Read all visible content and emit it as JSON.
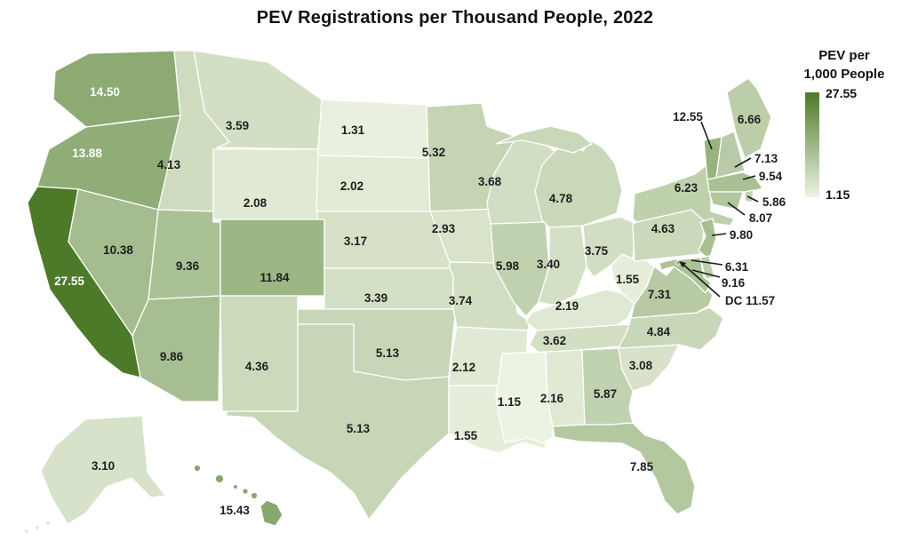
{
  "title": "PEV Registrations per Thousand People, 2022",
  "legend": {
    "title_line1": "PEV per",
    "title_line2": "1,000 People",
    "max_label": "27.55",
    "min_label": "1.15"
  },
  "chart_data": {
    "type": "choropleth",
    "title": "PEV Registrations per Thousand People, 2022",
    "unit": "PEV registrations per 1,000 people",
    "year": 2022,
    "legend_title": "PEV per 1,000 People",
    "color_scale": {
      "min_value": 1.15,
      "max_value": 27.55,
      "min_color": "#edf3e3",
      "max_color": "#4d7a28",
      "gamma": 0.75
    },
    "states": [
      {
        "abbr": "WA",
        "value": 14.5,
        "display": "14.50"
      },
      {
        "abbr": "OR",
        "value": 13.88,
        "display": "13.88"
      },
      {
        "abbr": "CA",
        "value": 27.55,
        "display": "27.55"
      },
      {
        "abbr": "ID",
        "value": 4.13,
        "display": "4.13"
      },
      {
        "abbr": "NV",
        "value": 10.38,
        "display": "10.38"
      },
      {
        "abbr": "UT",
        "value": 9.36,
        "display": "9.36"
      },
      {
        "abbr": "AZ",
        "value": 9.86,
        "display": "9.86"
      },
      {
        "abbr": "MT",
        "value": 3.59,
        "display": "3.59"
      },
      {
        "abbr": "WY",
        "value": 2.08,
        "display": "2.08"
      },
      {
        "abbr": "CO",
        "value": 11.84,
        "display": "11.84"
      },
      {
        "abbr": "NM",
        "value": 4.36,
        "display": "4.36"
      },
      {
        "abbr": "ND",
        "value": 1.31,
        "display": "1.31"
      },
      {
        "abbr": "SD",
        "value": 2.02,
        "display": "2.02"
      },
      {
        "abbr": "NE",
        "value": 3.17,
        "display": "3.17"
      },
      {
        "abbr": "KS",
        "value": 3.39,
        "display": "3.39"
      },
      {
        "abbr": "OK",
        "value": 5.13,
        "display": "5.13"
      },
      {
        "abbr": "TX",
        "value": 5.13,
        "display": "5.13"
      },
      {
        "abbr": "MN",
        "value": 5.32,
        "display": "5.32"
      },
      {
        "abbr": "IA",
        "value": 2.93,
        "display": "2.93"
      },
      {
        "abbr": "MO",
        "value": 3.74,
        "display": "3.74"
      },
      {
        "abbr": "AR",
        "value": 2.12,
        "display": "2.12"
      },
      {
        "abbr": "LA",
        "value": 1.55,
        "display": "1.55"
      },
      {
        "abbr": "WI",
        "value": 3.68,
        "display": "3.68"
      },
      {
        "abbr": "IL",
        "value": 5.98,
        "display": "5.98"
      },
      {
        "abbr": "MI",
        "value": 4.78,
        "display": "4.78"
      },
      {
        "abbr": "IN",
        "value": 3.4,
        "display": "3.40"
      },
      {
        "abbr": "OH",
        "value": 3.75,
        "display": "3.75"
      },
      {
        "abbr": "KY",
        "value": 2.19,
        "display": "2.19"
      },
      {
        "abbr": "TN",
        "value": 3.62,
        "display": "3.62"
      },
      {
        "abbr": "MS",
        "value": 1.15,
        "display": "1.15"
      },
      {
        "abbr": "AL",
        "value": 2.16,
        "display": "2.16"
      },
      {
        "abbr": "GA",
        "value": 5.87,
        "display": "5.87"
      },
      {
        "abbr": "SC",
        "value": 3.08,
        "display": "3.08"
      },
      {
        "abbr": "NC",
        "value": 4.84,
        "display": "4.84"
      },
      {
        "abbr": "VA",
        "value": 7.31,
        "display": "7.31"
      },
      {
        "abbr": "WV",
        "value": 1.55,
        "display": "1.55"
      },
      {
        "abbr": "FL",
        "value": 7.85,
        "display": "7.85"
      },
      {
        "abbr": "PA",
        "value": 4.63,
        "display": "4.63"
      },
      {
        "abbr": "NY",
        "value": 6.23,
        "display": "6.23"
      },
      {
        "abbr": "ME",
        "value": 6.66,
        "display": "6.66"
      },
      {
        "abbr": "VT",
        "value": 12.55,
        "display": "12.55"
      },
      {
        "abbr": "NH",
        "value": 7.13,
        "display": "7.13"
      },
      {
        "abbr": "MA",
        "value": 9.54,
        "display": "9.54"
      },
      {
        "abbr": "RI",
        "value": 5.86,
        "display": "5.86"
      },
      {
        "abbr": "CT",
        "value": 8.07,
        "display": "8.07"
      },
      {
        "abbr": "NJ",
        "value": 9.8,
        "display": "9.80"
      },
      {
        "abbr": "DE",
        "value": 6.31,
        "display": "6.31"
      },
      {
        "abbr": "MD",
        "value": 9.16,
        "display": "9.16"
      },
      {
        "abbr": "DC",
        "value": 11.57,
        "display": "DC 11.57"
      },
      {
        "abbr": "AK",
        "value": 3.1,
        "display": "3.10"
      },
      {
        "abbr": "HI",
        "value": 15.43,
        "display": "15.43"
      }
    ]
  }
}
